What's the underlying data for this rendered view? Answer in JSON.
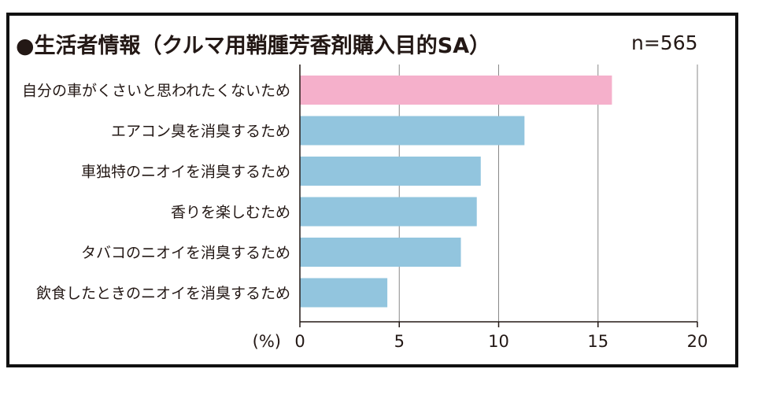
{
  "title": "●生活者情報（クルマ用鞘腫芳香剤購入目的SA）",
  "sample": "n=565",
  "chart_data": {
    "type": "bar",
    "orientation": "horizontal",
    "unit_label": "(%)",
    "categories": [
      "自分の車がくさいと思われたくないため",
      "エアコン臭を消臭するため",
      "車独特のニオイを消臭するため",
      "香りを楽しむため",
      "タバコのニオイを消臭するため",
      "飲食したときのニオイを消臭するため"
    ],
    "values": [
      15.7,
      11.3,
      9.1,
      8.9,
      8.1,
      4.4
    ],
    "xlim": [
      0,
      20
    ],
    "xticks": [
      0,
      5,
      10,
      15,
      20
    ],
    "colors": {
      "highlight": "#f5b0cb",
      "default": "#92c5de",
      "axis": "#231815",
      "grid": "#888888"
    },
    "highlight_index": 0
  }
}
